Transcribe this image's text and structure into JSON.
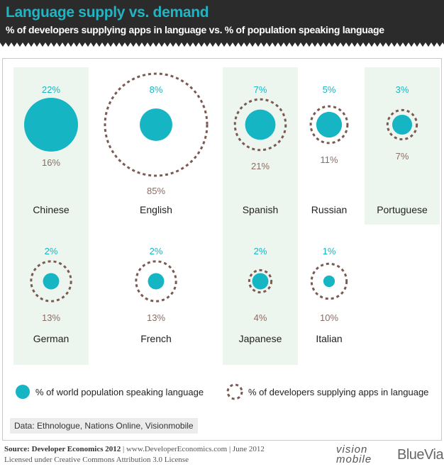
{
  "header": {
    "title": "Language supply vs. demand",
    "subtitle": "% of developers supplying apps in language vs. % of population speaking language"
  },
  "legend": {
    "solid_label": "% of world population speaking language",
    "dashed_label": "% of developers supplying apps in language"
  },
  "source_box": "Data: Ethnologue, Nations Online, Visionmobile",
  "footer": {
    "source_bold": "Source: Developer Economics 2012",
    "source_rest": " | www.DeveloperEconomics.com | June 2012",
    "license": "Licensed under Creative Commons Attribution 3.0 License"
  },
  "logos": {
    "vision": "vision mobile",
    "bluevia": "BlueVia"
  },
  "colors": {
    "teal": "#16b5c3",
    "dashed": "#7a5a52",
    "value_label": "#8a6d64",
    "band": "#edf6ee",
    "header_bg": "#2b2b2b"
  },
  "chart_data": {
    "type": "bubble",
    "series": [
      {
        "name": "% of world population speaking language",
        "style": "solid"
      },
      {
        "name": "% of developers supplying apps in language",
        "style": "dashed"
      }
    ],
    "languages": [
      {
        "name": "Chinese",
        "population_pct": 22,
        "developers_pct": 16,
        "population_label": "22%",
        "developers_label": "16%"
      },
      {
        "name": "English",
        "population_pct": 8,
        "developers_pct": 85,
        "population_label": "8%",
        "developers_label": "85%"
      },
      {
        "name": "Spanish",
        "population_pct": 7,
        "developers_pct": 21,
        "population_label": "7%",
        "developers_label": "21%"
      },
      {
        "name": "Russian",
        "population_pct": 5,
        "developers_pct": 11,
        "population_label": "5%",
        "developers_label": "11%"
      },
      {
        "name": "Portuguese",
        "population_pct": 3,
        "developers_pct": 7,
        "population_label": "3%",
        "developers_label": "7%"
      },
      {
        "name": "German",
        "population_pct": 2,
        "developers_pct": 13,
        "population_label": "2%",
        "developers_label": "13%"
      },
      {
        "name": "French",
        "population_pct": 2,
        "developers_pct": 13,
        "population_label": "2%",
        "developers_label": "13%"
      },
      {
        "name": "Japanese",
        "population_pct": 2,
        "developers_pct": 4,
        "population_label": "2%",
        "developers_label": "4%"
      },
      {
        "name": "Italian",
        "population_pct": 1,
        "developers_pct": 10,
        "population_label": "1%",
        "developers_label": "10%"
      }
    ]
  }
}
